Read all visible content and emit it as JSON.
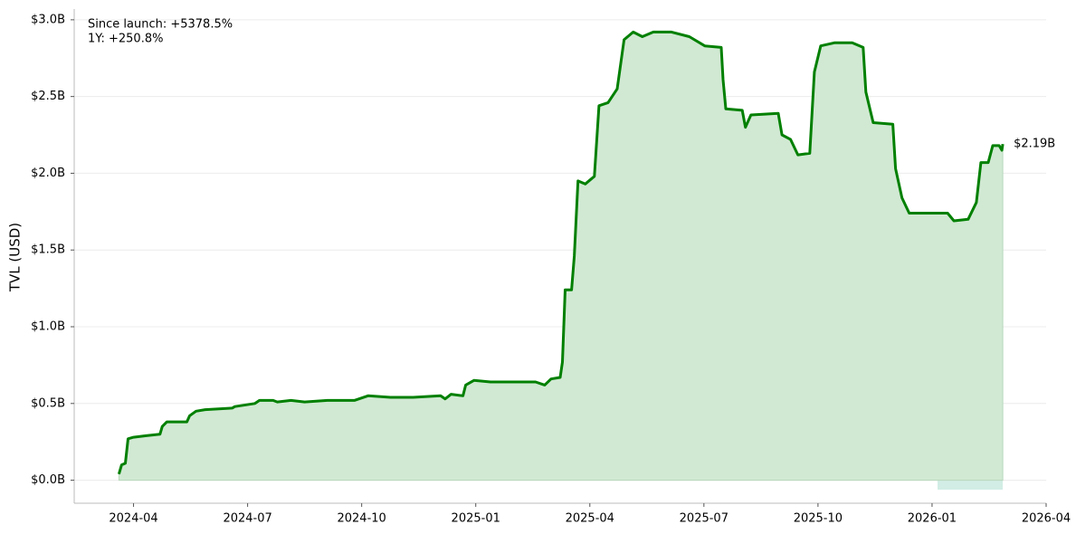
{
  "chart_data": {
    "type": "area-line",
    "ylabel": "TVL (USD)",
    "annotations": [
      "Since launch: +5378.5%",
      "1Y: +250.8%"
    ],
    "color": "#008000",
    "fill_color": "#d1e9d3",
    "grid": true,
    "xlim": [
      2024.12,
      2026.25
    ],
    "ylim": [
      -0.15,
      3.07
    ],
    "xticks": [
      {
        "value": 2024.25,
        "label": "2024-04"
      },
      {
        "value": 2024.5,
        "label": "2024-07"
      },
      {
        "value": 2024.75,
        "label": "2024-10"
      },
      {
        "value": 2025.0,
        "label": "2025-01"
      },
      {
        "value": 2025.25,
        "label": "2025-04"
      },
      {
        "value": 2025.5,
        "label": "2025-07"
      },
      {
        "value": 2025.75,
        "label": "2025-10"
      },
      {
        "value": 2026.0,
        "label": "2026-01"
      },
      {
        "value": 2026.25,
        "label": "2026-04"
      }
    ],
    "yticks": [
      {
        "value": 0,
        "label": "$0.0B"
      },
      {
        "value": 0.5,
        "label": "$0.5B"
      },
      {
        "value": 1,
        "label": "$1.0B"
      },
      {
        "value": 1.5,
        "label": "$1.5B"
      },
      {
        "value": 2,
        "label": "$2.0B"
      },
      {
        "value": 2.5,
        "label": "$2.5B"
      },
      {
        "value": 3,
        "label": "$3.0B"
      }
    ],
    "x": [
      2024.218,
      2024.224,
      2024.232,
      2024.238,
      2024.25,
      2024.278,
      2024.308,
      2024.313,
      2024.323,
      2024.367,
      2024.373,
      2024.387,
      2024.407,
      2024.466,
      2024.472,
      2024.516,
      2024.526,
      2024.556,
      2024.565,
      2024.595,
      2024.625,
      2024.675,
      2024.734,
      2024.764,
      2024.813,
      2024.863,
      2024.923,
      2024.933,
      2024.946,
      2024.972,
      2024.978,
      2024.996,
      2025.032,
      2025.091,
      2025.131,
      2025.151,
      2025.165,
      2025.185,
      2025.19,
      2025.196,
      2025.21,
      2025.216,
      2025.224,
      2025.24,
      2025.26,
      2025.27,
      2025.29,
      2025.31,
      2025.325,
      2025.345,
      2025.365,
      2025.389,
      2025.429,
      2025.468,
      2025.502,
      2025.538,
      2025.542,
      2025.548,
      2025.584,
      2025.591,
      2025.603,
      2025.663,
      2025.671,
      2025.69,
      2025.706,
      2025.732,
      2025.742,
      2025.756,
      2025.786,
      2025.825,
      2025.849,
      2025.855,
      2025.871,
      2025.914,
      2025.92,
      2025.934,
      2025.95,
      2025.984,
      2026.034,
      2026.048,
      2026.079,
      2026.097,
      2026.107,
      2026.123,
      2026.133,
      2026.147,
      2026.153,
      2026.155
    ],
    "values": [
      0.04,
      0.1,
      0.11,
      0.27,
      0.28,
      0.29,
      0.3,
      0.35,
      0.38,
      0.38,
      0.42,
      0.45,
      0.46,
      0.47,
      0.48,
      0.5,
      0.52,
      0.52,
      0.51,
      0.52,
      0.51,
      0.52,
      0.52,
      0.55,
      0.54,
      0.54,
      0.55,
      0.53,
      0.56,
      0.55,
      0.62,
      0.65,
      0.64,
      0.64,
      0.64,
      0.62,
      0.66,
      0.67,
      0.77,
      1.24,
      1.24,
      1.46,
      1.95,
      1.93,
      1.98,
      2.44,
      2.46,
      2.55,
      2.87,
      2.92,
      2.89,
      2.92,
      2.92,
      2.89,
      2.83,
      2.82,
      2.61,
      2.42,
      2.41,
      2.3,
      2.38,
      2.39,
      2.25,
      2.22,
      2.12,
      2.13,
      2.66,
      2.83,
      2.85,
      2.85,
      2.82,
      2.53,
      2.33,
      2.32,
      2.03,
      1.84,
      1.74,
      1.74,
      1.74,
      1.69,
      1.7,
      1.81,
      2.07,
      2.07,
      2.18,
      2.18,
      2.15,
      2.19
    ],
    "end_label": "$2.19B"
  }
}
